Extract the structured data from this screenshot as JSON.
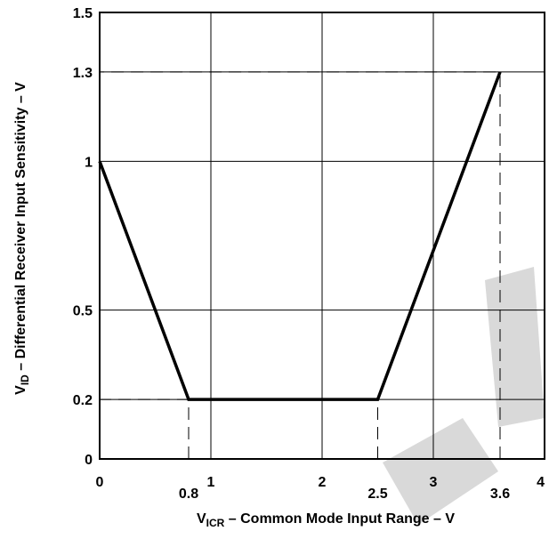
{
  "chart_data": {
    "type": "line",
    "xlabel": {
      "main": "V",
      "sub": "ICR",
      "rest": " – Common Mode Input Range – V"
    },
    "ylabel": {
      "main": "V",
      "sub": "ID",
      "rest": "  – Differential Receiver Input Sensitivity – V"
    },
    "xlim": [
      0,
      4
    ],
    "ylim": [
      0,
      1.5
    ],
    "grid": true,
    "x_ticks": [
      0,
      1,
      2,
      3,
      4
    ],
    "y_ticks": [
      0,
      0.2,
      0.5,
      1,
      1.3,
      1.5
    ],
    "x_tick_labels": [
      "0",
      "1",
      "2",
      "3",
      "4"
    ],
    "y_tick_labels": [
      "0",
      "0.2",
      "0.5",
      "1",
      "1.3",
      "1.5"
    ],
    "x_marker_labels": [
      {
        "x": 0.8,
        "label": "0.8"
      },
      {
        "x": 2.5,
        "label": "2.5"
      },
      {
        "x": 3.6,
        "label": "3.6"
      }
    ],
    "series": [
      {
        "x": [
          0,
          0.8,
          2.5,
          3.6
        ],
        "y": [
          1,
          0.2,
          0.2,
          1.3
        ]
      }
    ],
    "reference_lines": [
      {
        "points": [
          [
            0.8,
            0
          ],
          [
            0.8,
            0.2
          ],
          [
            0,
            0.2
          ]
        ]
      },
      {
        "points": [
          [
            2.5,
            0
          ],
          [
            2.5,
            0.2
          ]
        ]
      },
      {
        "points": [
          [
            3.6,
            0
          ],
          [
            3.6,
            1.3
          ],
          [
            0,
            1.3
          ]
        ]
      }
    ]
  }
}
